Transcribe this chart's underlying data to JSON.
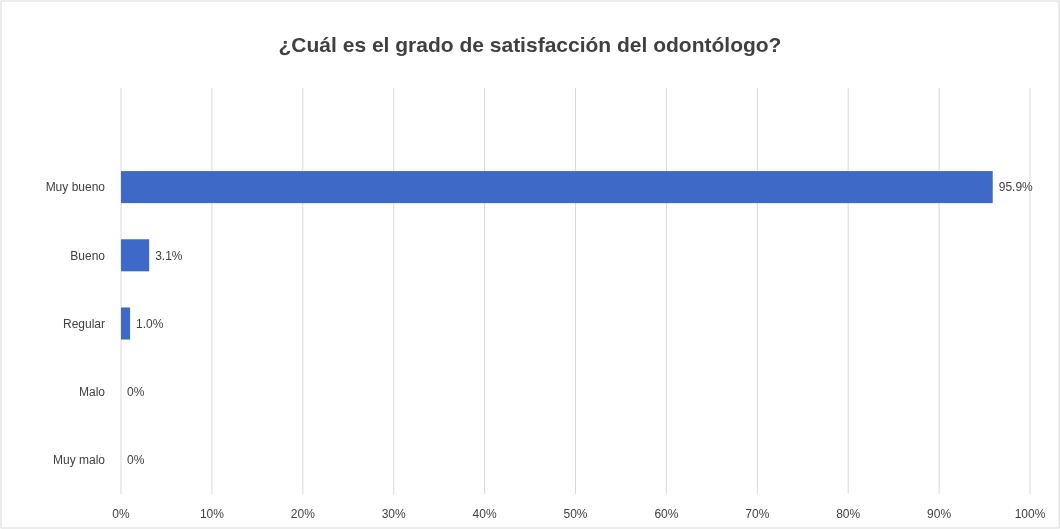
{
  "chart_data": {
    "type": "bar",
    "orientation": "horizontal",
    "title": "¿Cuál es el grado de satisfacción del odontólogo?",
    "categories": [
      "Muy bueno",
      "Bueno",
      "Regular",
      "Malo",
      "Muy malo"
    ],
    "values": [
      95.9,
      3.1,
      1.0,
      0,
      0
    ],
    "value_labels": [
      "95.9%",
      "3.1%",
      "1.0%",
      "0%",
      "0%"
    ],
    "color": "#3f69c6",
    "xlim": [
      0,
      100
    ],
    "xticks": [
      {
        "value": 0,
        "label": "0%"
      },
      {
        "value": 10,
        "label": "10%"
      },
      {
        "value": 20,
        "label": "20%"
      },
      {
        "value": 30,
        "label": "30%"
      },
      {
        "value": 40,
        "label": "40%"
      },
      {
        "value": 50,
        "label": "50%"
      },
      {
        "value": 60,
        "label": "60%"
      },
      {
        "value": 70,
        "label": "70%"
      },
      {
        "value": 80,
        "label": "80%"
      },
      {
        "value": 90,
        "label": "90%"
      },
      {
        "value": 100,
        "label": "100%"
      }
    ],
    "grid": "x"
  }
}
